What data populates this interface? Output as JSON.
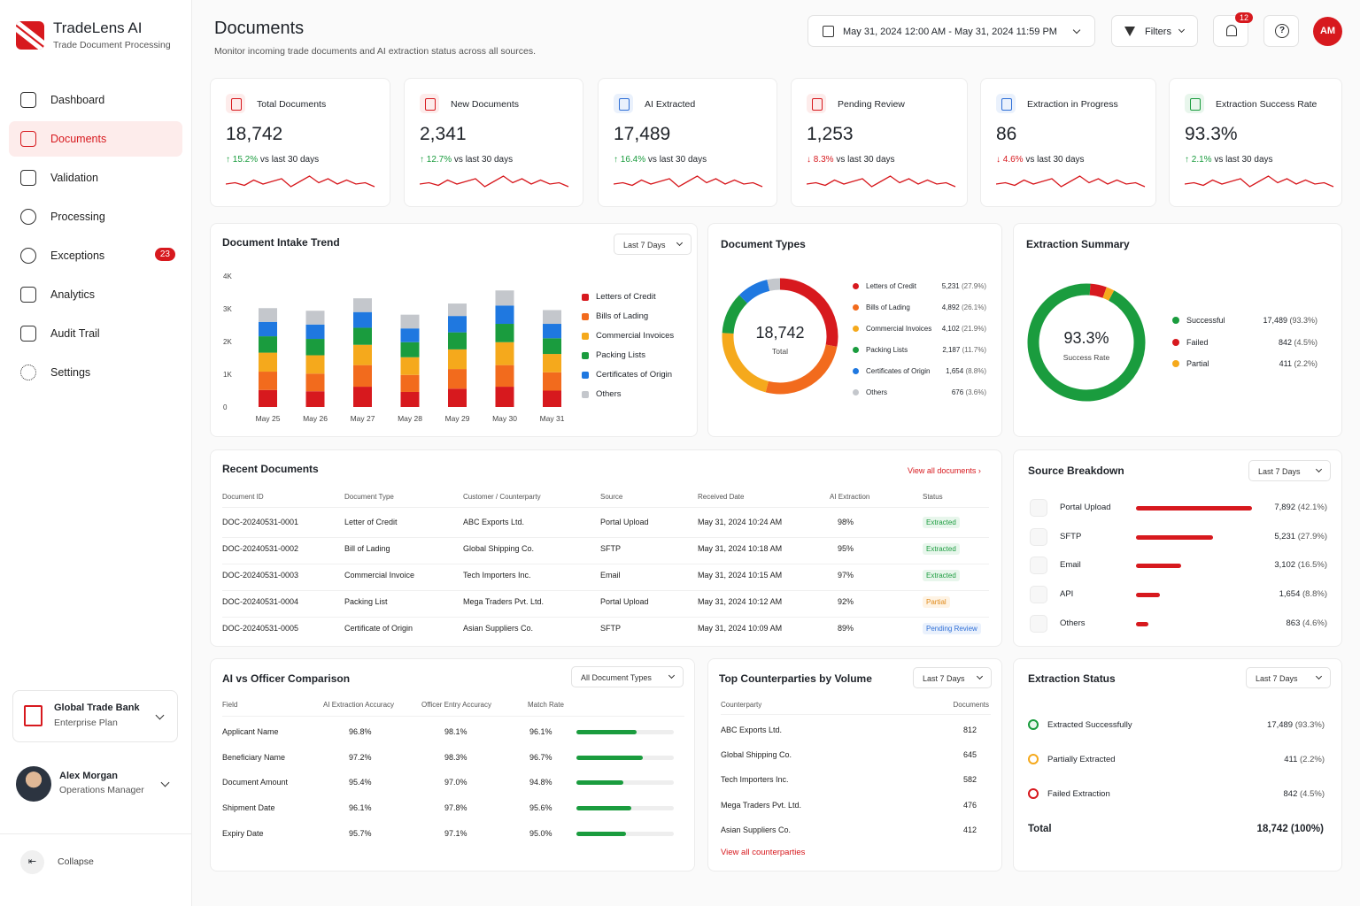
{
  "app": {
    "name": "TradeLens AI",
    "subtitle": "Trade Document Processing"
  },
  "nav": [
    {
      "label": "Dashboard",
      "icon": "home-icon"
    },
    {
      "label": "Documents",
      "icon": "document-icon",
      "active": true
    },
    {
      "label": "Validation",
      "icon": "scan-icon"
    },
    {
      "label": "Processing",
      "icon": "gear-cycle-icon"
    },
    {
      "label": "Exceptions",
      "icon": "alert-icon",
      "badge": "23"
    },
    {
      "label": "Analytics",
      "icon": "bar-chart-icon"
    },
    {
      "label": "Audit Trail",
      "icon": "list-icon"
    },
    {
      "label": "Settings",
      "icon": "settings-icon"
    }
  ],
  "org": {
    "name": "Global Trade Bank",
    "plan": "Enterprise Plan"
  },
  "user": {
    "name": "Alex Morgan",
    "role": "Operations Manager",
    "initials": "AM"
  },
  "collapse": {
    "label": "Collapse",
    "glyph": "⇤"
  },
  "header": {
    "title": "Documents",
    "subtitle": "Monitor incoming trade documents and AI extraction status across all sources.",
    "date_range": "May 31, 2024 12:00 AM - May 31, 2024 11:59 PM",
    "filters": "Filters",
    "notifications": "12",
    "help_glyph": "?"
  },
  "kpis": [
    {
      "label": "Total Documents",
      "value": "18,742",
      "change": "↑ 15.2%",
      "dir": "up",
      "suffix": "vs last 30 days",
      "color": "#d7191e",
      "bg": "#fdeceb"
    },
    {
      "label": "New Documents",
      "value": "2,341",
      "change": "↑ 12.7%",
      "dir": "up",
      "suffix": "vs last 30 days",
      "color": "#d7191e",
      "bg": "#fdeceb"
    },
    {
      "label": "AI Extracted",
      "value": "17,489",
      "change": "↑ 16.4%",
      "dir": "up",
      "suffix": "vs last 30 days",
      "color": "#2f6fd6",
      "bg": "#eaf1fc"
    },
    {
      "label": "Pending Review",
      "value": "1,253",
      "change": "↓ 8.3%",
      "dir": "down",
      "suffix": "vs last 30 days",
      "color": "#d7191e",
      "bg": "#fdeceb"
    },
    {
      "label": "Extraction in Progress",
      "value": "86",
      "change": "↓ 4.6%",
      "dir": "down",
      "suffix": "vs last 30 days",
      "color": "#2f6fd6",
      "bg": "#eaf1fc"
    },
    {
      "label": "Extraction Success Rate",
      "value": "93.3%",
      "change": "↑ 2.1%",
      "dir": "up",
      "suffix": "vs last 30 days",
      "color": "#1a9c3e",
      "bg": "#e8f6ec"
    }
  ],
  "intake": {
    "title": "Document Intake Trend",
    "range": "Last 7 Days"
  },
  "doc_types": {
    "title": "Document Types",
    "total": "18,742",
    "total_label": "Total",
    "items": [
      {
        "name": "Letters of Credit",
        "value": "5,231",
        "pct": "(27.9%)",
        "v": 5231,
        "color": "#d7191e"
      },
      {
        "name": "Bills of Lading",
        "value": "4,892",
        "pct": "(26.1%)",
        "v": 4892,
        "color": "#f26b1d"
      },
      {
        "name": "Commercial Invoices",
        "value": "4,102",
        "pct": "(21.9%)",
        "v": 4102,
        "color": "#f5a91c"
      },
      {
        "name": "Packing Lists",
        "value": "2,187",
        "pct": "(11.7%)",
        "v": 2187,
        "color": "#1a9c3e"
      },
      {
        "name": "Certificates of Origin",
        "value": "1,654",
        "pct": "(8.8%)",
        "v": 1654,
        "color": "#1f78e0"
      },
      {
        "name": "Others",
        "value": "676",
        "pct": "(3.6%)",
        "v": 676,
        "color": "#c4c7cc"
      }
    ]
  },
  "extraction_summary": {
    "title": "Extraction Summary",
    "rate": "93.3%",
    "rate_label": "Success Rate",
    "items": [
      {
        "name": "Successful",
        "value": "17,489",
        "pct": "(93.3%)",
        "v": 17489,
        "color": "#1a9c3e"
      },
      {
        "name": "Failed",
        "value": "842",
        "pct": "(4.5%)",
        "v": 842,
        "color": "#d7191e"
      },
      {
        "name": "Partial",
        "value": "411",
        "pct": "(2.2%)",
        "v": 411,
        "color": "#f5a91c"
      }
    ]
  },
  "recent": {
    "title": "Recent Documents",
    "link": "View all documents  ›",
    "headers": [
      "Document ID",
      "Document Type",
      "Customer / Counterparty",
      "Source",
      "Received Date",
      "AI Extraction",
      "Status"
    ],
    "rows": [
      [
        "DOC-20240531-0001",
        "Letter of Credit",
        "ABC Exports Ltd.",
        "Portal Upload",
        "May 31, 2024  10:24 AM",
        "98%",
        "Extracted"
      ],
      [
        "DOC-20240531-0002",
        "Bill of Lading",
        "Global Shipping Co.",
        "SFTP",
        "May 31, 2024  10:18 AM",
        "95%",
        "Extracted"
      ],
      [
        "DOC-20240531-0003",
        "Commercial Invoice",
        "Tech Importers Inc.",
        "Email",
        "May 31, 2024  10:15 AM",
        "97%",
        "Extracted"
      ],
      [
        "DOC-20240531-0004",
        "Packing List",
        "Mega Traders Pvt. Ltd.",
        "Portal Upload",
        "May 31, 2024  10:12 AM",
        "92%",
        "Partial"
      ],
      [
        "DOC-20240531-0005",
        "Certificate of Origin",
        "Asian Suppliers Co.",
        "SFTP",
        "May 31, 2024  10:09 AM",
        "89%",
        "Pending Review"
      ]
    ]
  },
  "source": {
    "title": "Source Breakdown",
    "range": "Last 7 Days",
    "items": [
      {
        "name": "Portal Upload",
        "value": "7,892",
        "pct": "(42.1%)",
        "share": 42.1
      },
      {
        "name": "SFTP",
        "value": "5,231",
        "pct": "(27.9%)",
        "share": 27.9
      },
      {
        "name": "Email",
        "value": "3,102",
        "pct": "(16.5%)",
        "share": 16.5
      },
      {
        "name": "API",
        "value": "1,654",
        "pct": "(8.8%)",
        "share": 8.8
      },
      {
        "name": "Others",
        "value": "863",
        "pct": "(4.6%)",
        "share": 4.6
      }
    ]
  },
  "comparison": {
    "title": "AI vs Officer Comparison",
    "filter": "All Document Types",
    "headers": [
      "Field",
      "AI Extraction Accuracy",
      "Officer Entry Accuracy",
      "Match Rate"
    ],
    "rows": [
      {
        "field": "Applicant Name",
        "ai": "96.8%",
        "officer": "98.1%",
        "match": "96.1%",
        "m": 96.1
      },
      {
        "field": "Beneficiary Name",
        "ai": "97.2%",
        "officer": "98.3%",
        "match": "96.7%",
        "m": 96.7
      },
      {
        "field": "Document Amount",
        "ai": "95.4%",
        "officer": "97.0%",
        "match": "94.8%",
        "m": 94.8
      },
      {
        "field": "Shipment Date",
        "ai": "96.1%",
        "officer": "97.8%",
        "match": "95.6%",
        "m": 95.6
      },
      {
        "field": "Expiry Date",
        "ai": "95.7%",
        "officer": "97.1%",
        "match": "95.0%",
        "m": 95.0
      }
    ]
  },
  "counterparties": {
    "title": "Top Counterparties by Volume",
    "range": "Last 7 Days",
    "headers": [
      "Counterparty",
      "Documents"
    ],
    "rows": [
      [
        "ABC Exports Ltd.",
        "812"
      ],
      [
        "Global Shipping Co.",
        "645"
      ],
      [
        "Tech Importers Inc.",
        "582"
      ],
      [
        "Mega Traders Pvt. Ltd.",
        "476"
      ],
      [
        "Asian Suppliers Co.",
        "412"
      ]
    ],
    "link": "View all counterparties"
  },
  "extraction_status": {
    "title": "Extraction Status",
    "range": "Last 7 Days",
    "items": [
      {
        "name": "Extracted Successfully",
        "value": "17,489",
        "pct": "(93.3%)",
        "color": "#1a9c3e"
      },
      {
        "name": "Partially Extracted",
        "value": "411",
        "pct": "(2.2%)",
        "color": "#f5a91c"
      },
      {
        "name": "Failed Extraction",
        "value": "842",
        "pct": "(4.5%)",
        "color": "#d7191e"
      }
    ],
    "total_label": "Total",
    "total_value": "18,742 (100%)"
  },
  "chart_data": {
    "type": "bar",
    "stacked": true,
    "categories": [
      "May 25",
      "May 26",
      "May 27",
      "May 28",
      "May 29",
      "May 30",
      "May 31"
    ],
    "yticks": [
      "0",
      "1K",
      "2K",
      "3K",
      "4K"
    ],
    "ylim": [
      0,
      4000
    ],
    "legend": "right",
    "series": [
      {
        "name": "Letters of Credit",
        "color": "#d7191e",
        "values": [
          520,
          480,
          620,
          460,
          560,
          620,
          500
        ]
      },
      {
        "name": "Bills of Lading",
        "color": "#f26b1d",
        "values": [
          560,
          540,
          660,
          520,
          600,
          660,
          560
        ]
      },
      {
        "name": "Commercial Invoices",
        "color": "#f5a91c",
        "values": [
          580,
          560,
          620,
          540,
          600,
          700,
          560
        ]
      },
      {
        "name": "Packing Lists",
        "color": "#1a9c3e",
        "values": [
          500,
          500,
          520,
          460,
          520,
          560,
          480
        ]
      },
      {
        "name": "Certificates of Origin",
        "color": "#1f78e0",
        "values": [
          440,
          440,
          480,
          420,
          500,
          560,
          440
        ]
      },
      {
        "name": "Others",
        "color": "#c4c7cc",
        "values": [
          420,
          420,
          420,
          420,
          380,
          460,
          420
        ]
      }
    ]
  }
}
